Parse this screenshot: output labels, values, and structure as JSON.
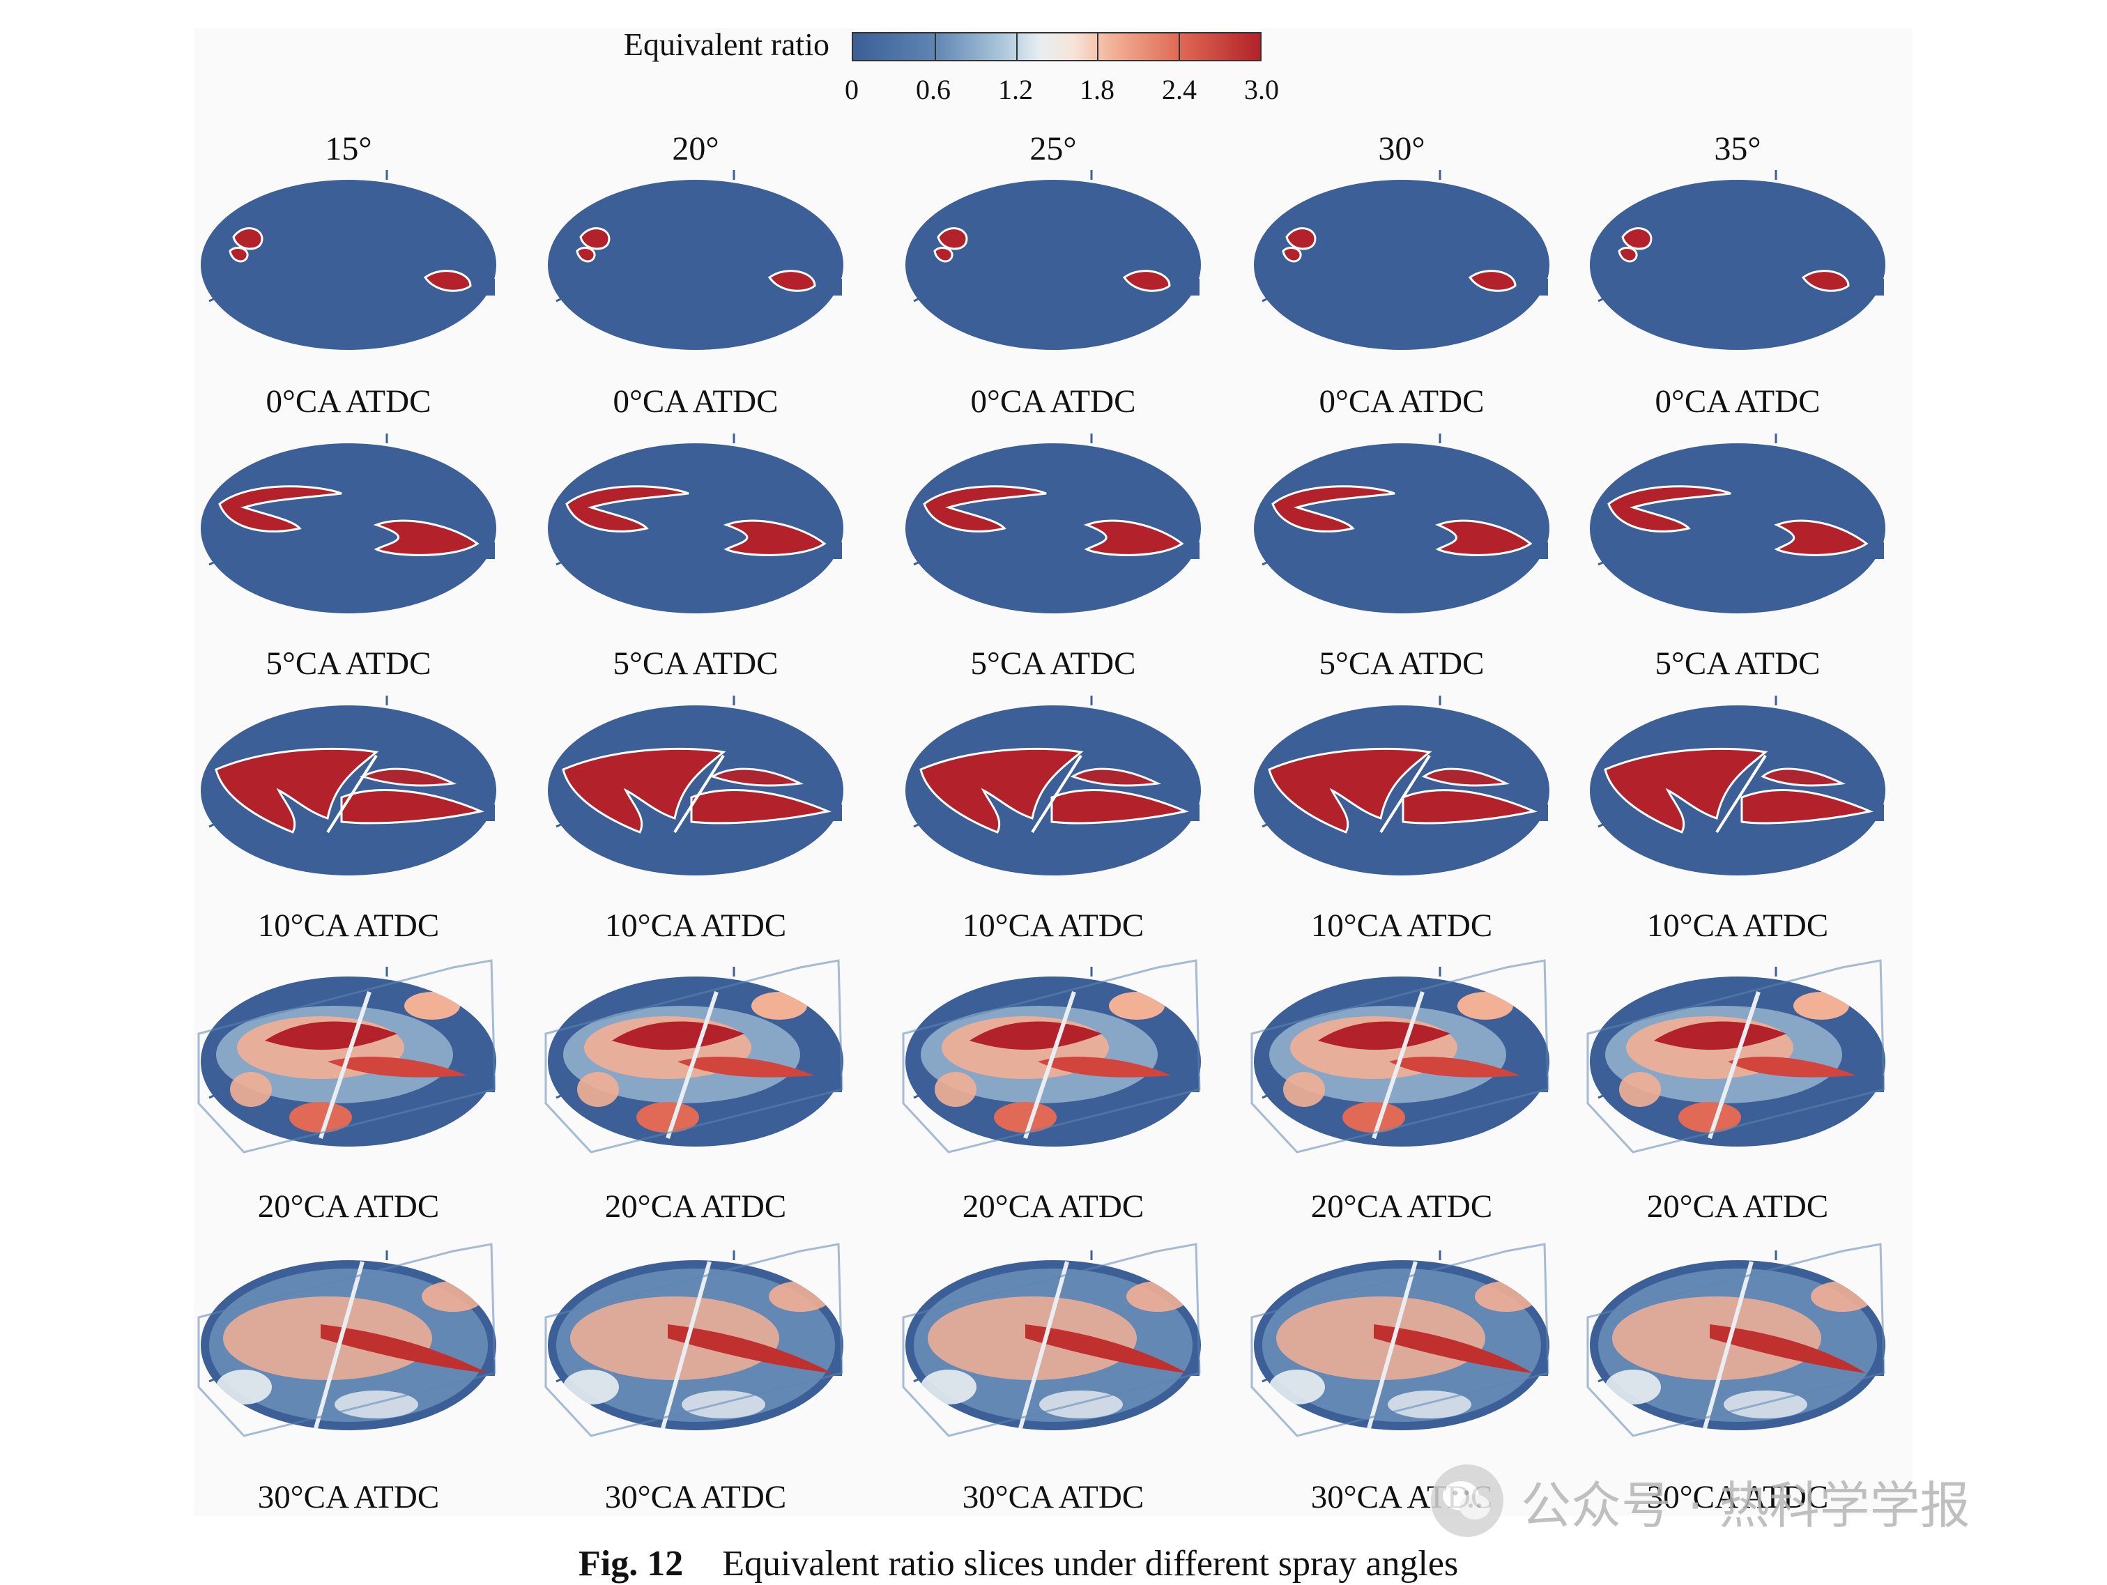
{
  "colorbar": {
    "title": "Equivalent ratio",
    "ticks": [
      "0",
      "0.6",
      "1.2",
      "1.8",
      "2.4",
      "3.0"
    ],
    "colors": [
      "#3b5f96",
      "#a9c4d9",
      "#e8eef1",
      "#f2b095",
      "#b3222a"
    ]
  },
  "columns": [
    "15°",
    "20°",
    "25°",
    "30°",
    "35°"
  ],
  "rows": [
    {
      "label": "0°CA ATDC"
    },
    {
      "label": "5°CA ATDC"
    },
    {
      "label": "10°CA ATDC"
    },
    {
      "label": "20°CA ATDC"
    },
    {
      "label": "30°CA ATDC"
    }
  ],
  "caption": {
    "number": "Fig. 12",
    "text": "Equivalent ratio slices under different spray angles"
  },
  "watermark": {
    "text": "公众号 · 热科学学报",
    "icon": "wechat-logo-icon"
  }
}
